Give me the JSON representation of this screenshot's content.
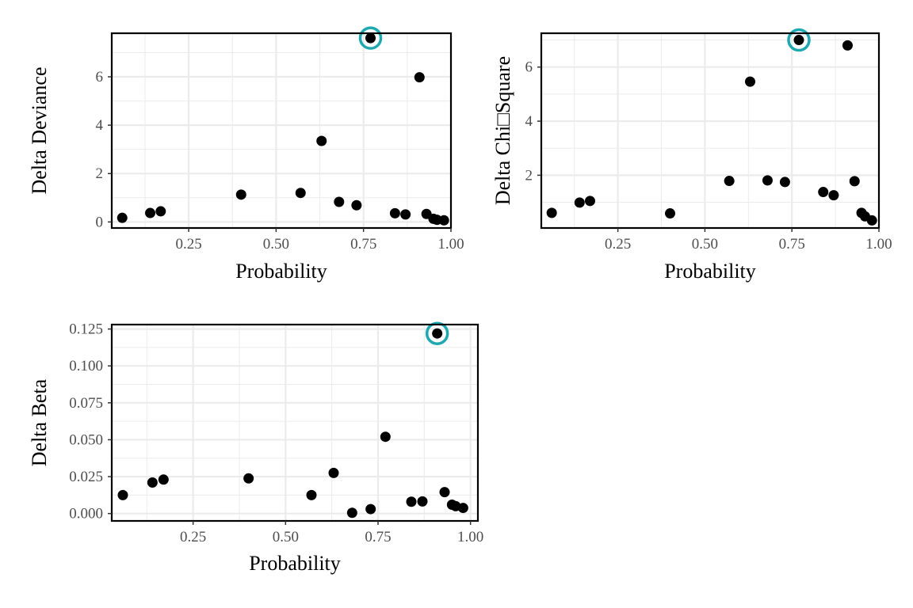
{
  "chart_data": [
    {
      "type": "scatter",
      "xlabel": "Probability",
      "ylabel": "Delta Deviance",
      "xlim": [
        0.03,
        1.0
      ],
      "ylim": [
        -0.25,
        7.8
      ],
      "xticks": [
        0.25,
        0.5,
        0.75,
        1.0
      ],
      "xtick_labels": [
        "0.25",
        "0.50",
        "0.75",
        "1.00"
      ],
      "yticks": [
        0,
        2,
        4,
        6
      ],
      "ytick_labels": [
        "0",
        "2",
        "4",
        "6"
      ],
      "grid": true,
      "points": [
        {
          "x": 0.06,
          "y": 0.17
        },
        {
          "x": 0.14,
          "y": 0.37
        },
        {
          "x": 0.17,
          "y": 0.44
        },
        {
          "x": 0.4,
          "y": 1.13
        },
        {
          "x": 0.57,
          "y": 1.2
        },
        {
          "x": 0.63,
          "y": 3.35
        },
        {
          "x": 0.68,
          "y": 0.83
        },
        {
          "x": 0.73,
          "y": 0.69
        },
        {
          "x": 0.77,
          "y": 7.6
        },
        {
          "x": 0.84,
          "y": 0.36
        },
        {
          "x": 0.87,
          "y": 0.31
        },
        {
          "x": 0.91,
          "y": 5.98
        },
        {
          "x": 0.93,
          "y": 0.33
        },
        {
          "x": 0.95,
          "y": 0.13
        },
        {
          "x": 0.96,
          "y": 0.09
        },
        {
          "x": 0.98,
          "y": 0.07
        }
      ],
      "highlighted_x": 0.77,
      "highlighted_y": 7.6
    },
    {
      "type": "scatter",
      "xlabel": "Probability",
      "ylabel": "Delta Chi□Square",
      "xlim": [
        0.03,
        1.0
      ],
      "ylim": [
        0.05,
        7.25
      ],
      "xticks": [
        0.25,
        0.5,
        0.75,
        1.0
      ],
      "xtick_labels": [
        "0.25",
        "0.50",
        "0.75",
        "1.00"
      ],
      "yticks": [
        2,
        4,
        6
      ],
      "ytick_labels": [
        "2",
        "4",
        "6"
      ],
      "grid": true,
      "points": [
        {
          "x": 0.06,
          "y": 0.61
        },
        {
          "x": 0.14,
          "y": 0.99
        },
        {
          "x": 0.17,
          "y": 1.05
        },
        {
          "x": 0.4,
          "y": 0.59
        },
        {
          "x": 0.57,
          "y": 1.79
        },
        {
          "x": 0.63,
          "y": 5.46
        },
        {
          "x": 0.68,
          "y": 1.81
        },
        {
          "x": 0.73,
          "y": 1.75
        },
        {
          "x": 0.77,
          "y": 7.0
        },
        {
          "x": 0.84,
          "y": 1.38
        },
        {
          "x": 0.87,
          "y": 1.26
        },
        {
          "x": 0.91,
          "y": 6.8
        },
        {
          "x": 0.93,
          "y": 1.78
        },
        {
          "x": 0.95,
          "y": 0.61
        },
        {
          "x": 0.96,
          "y": 0.48
        },
        {
          "x": 0.98,
          "y": 0.33
        }
      ],
      "highlighted_x": 0.77,
      "highlighted_y": 7.0
    },
    {
      "type": "scatter",
      "xlabel": "Probability",
      "ylabel": "Delta Beta",
      "xlim": [
        0.03,
        1.02
      ],
      "ylim": [
        -0.005,
        0.128
      ],
      "xticks": [
        0.25,
        0.5,
        0.75,
        1.0
      ],
      "xtick_labels": [
        "0.25",
        "0.50",
        "0.75",
        "1.00"
      ],
      "yticks": [
        0,
        0.025,
        0.05,
        0.075,
        0.1,
        0.125
      ],
      "ytick_labels": [
        "0.000",
        "0.025",
        "0.050",
        "0.075",
        "0.100",
        "0.125"
      ],
      "grid": true,
      "points": [
        {
          "x": 0.06,
          "y": 0.0125
        },
        {
          "x": 0.14,
          "y": 0.021
        },
        {
          "x": 0.17,
          "y": 0.023
        },
        {
          "x": 0.4,
          "y": 0.0238
        },
        {
          "x": 0.57,
          "y": 0.0125
        },
        {
          "x": 0.63,
          "y": 0.0275
        },
        {
          "x": 0.68,
          "y": 0.0005
        },
        {
          "x": 0.73,
          "y": 0.003
        },
        {
          "x": 0.77,
          "y": 0.052
        },
        {
          "x": 0.84,
          "y": 0.008
        },
        {
          "x": 0.87,
          "y": 0.0082
        },
        {
          "x": 0.91,
          "y": 0.122
        },
        {
          "x": 0.93,
          "y": 0.0145
        },
        {
          "x": 0.95,
          "y": 0.006
        },
        {
          "x": 0.96,
          "y": 0.005
        },
        {
          "x": 0.98,
          "y": 0.0038
        }
      ],
      "highlighted_x": 0.91,
      "highlighted_y": 0.122
    }
  ],
  "colors": {
    "point": "#000000",
    "highlight_ring": "#1fa8b0",
    "grid": "#ebebeb",
    "panel_border": "#000000",
    "tick_text": "#4d4d4d"
  }
}
